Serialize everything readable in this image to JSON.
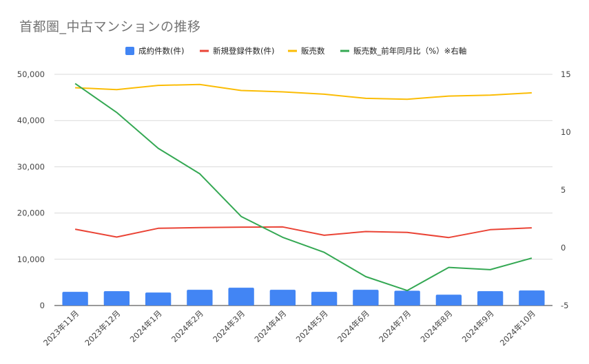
{
  "title": "首都圏_中古マンションの推移",
  "chart_data": {
    "type": "bar",
    "categories": [
      "2023年11月",
      "2023年12月",
      "2024年1月",
      "2024年2月",
      "2024年3月",
      "2024年4月",
      "2024年5月",
      "2024年6月",
      "2024年7月",
      "2024年8月",
      "2024年9月",
      "2024年10月"
    ],
    "series": [
      {
        "name": "成約件数(件)",
        "type": "bar",
        "axis": "left",
        "color": "#4285F4",
        "values": [
          2950,
          3100,
          2800,
          3400,
          3850,
          3400,
          2950,
          3400,
          3200,
          2350,
          3100,
          3250
        ]
      },
      {
        "name": "新規登録件数(件)",
        "type": "line",
        "axis": "left",
        "color": "#EA4335",
        "values": [
          16500,
          14800,
          16700,
          16850,
          16950,
          17000,
          15200,
          16000,
          15800,
          14700,
          16400,
          16800
        ]
      },
      {
        "name": "販売数",
        "type": "line",
        "axis": "left",
        "color": "#FBBC04",
        "values": [
          47100,
          46700,
          47600,
          47800,
          46500,
          46200,
          45700,
          44800,
          44600,
          45300,
          45500,
          46000
        ]
      },
      {
        "name": "販売数_前年同月比（%）※右軸",
        "type": "line",
        "axis": "right",
        "color": "#34A853",
        "values": [
          14.2,
          11.7,
          8.6,
          6.4,
          2.7,
          0.9,
          -0.4,
          -2.5,
          -3.7,
          -1.7,
          -1.9,
          -0.9
        ]
      }
    ],
    "y_left": {
      "min": 0,
      "max": 50000,
      "ticks": [
        0,
        10000,
        20000,
        30000,
        40000,
        50000
      ],
      "tick_labels": [
        "0",
        "10,000",
        "20,000",
        "30,000",
        "40,000",
        "50,000"
      ]
    },
    "y_right": {
      "min": -5,
      "max": 15,
      "ticks": [
        -5,
        0,
        5,
        10,
        15
      ],
      "tick_labels": [
        "-5",
        "0",
        "5",
        "10",
        "15"
      ]
    },
    "grid": true,
    "legend_position": "top"
  }
}
